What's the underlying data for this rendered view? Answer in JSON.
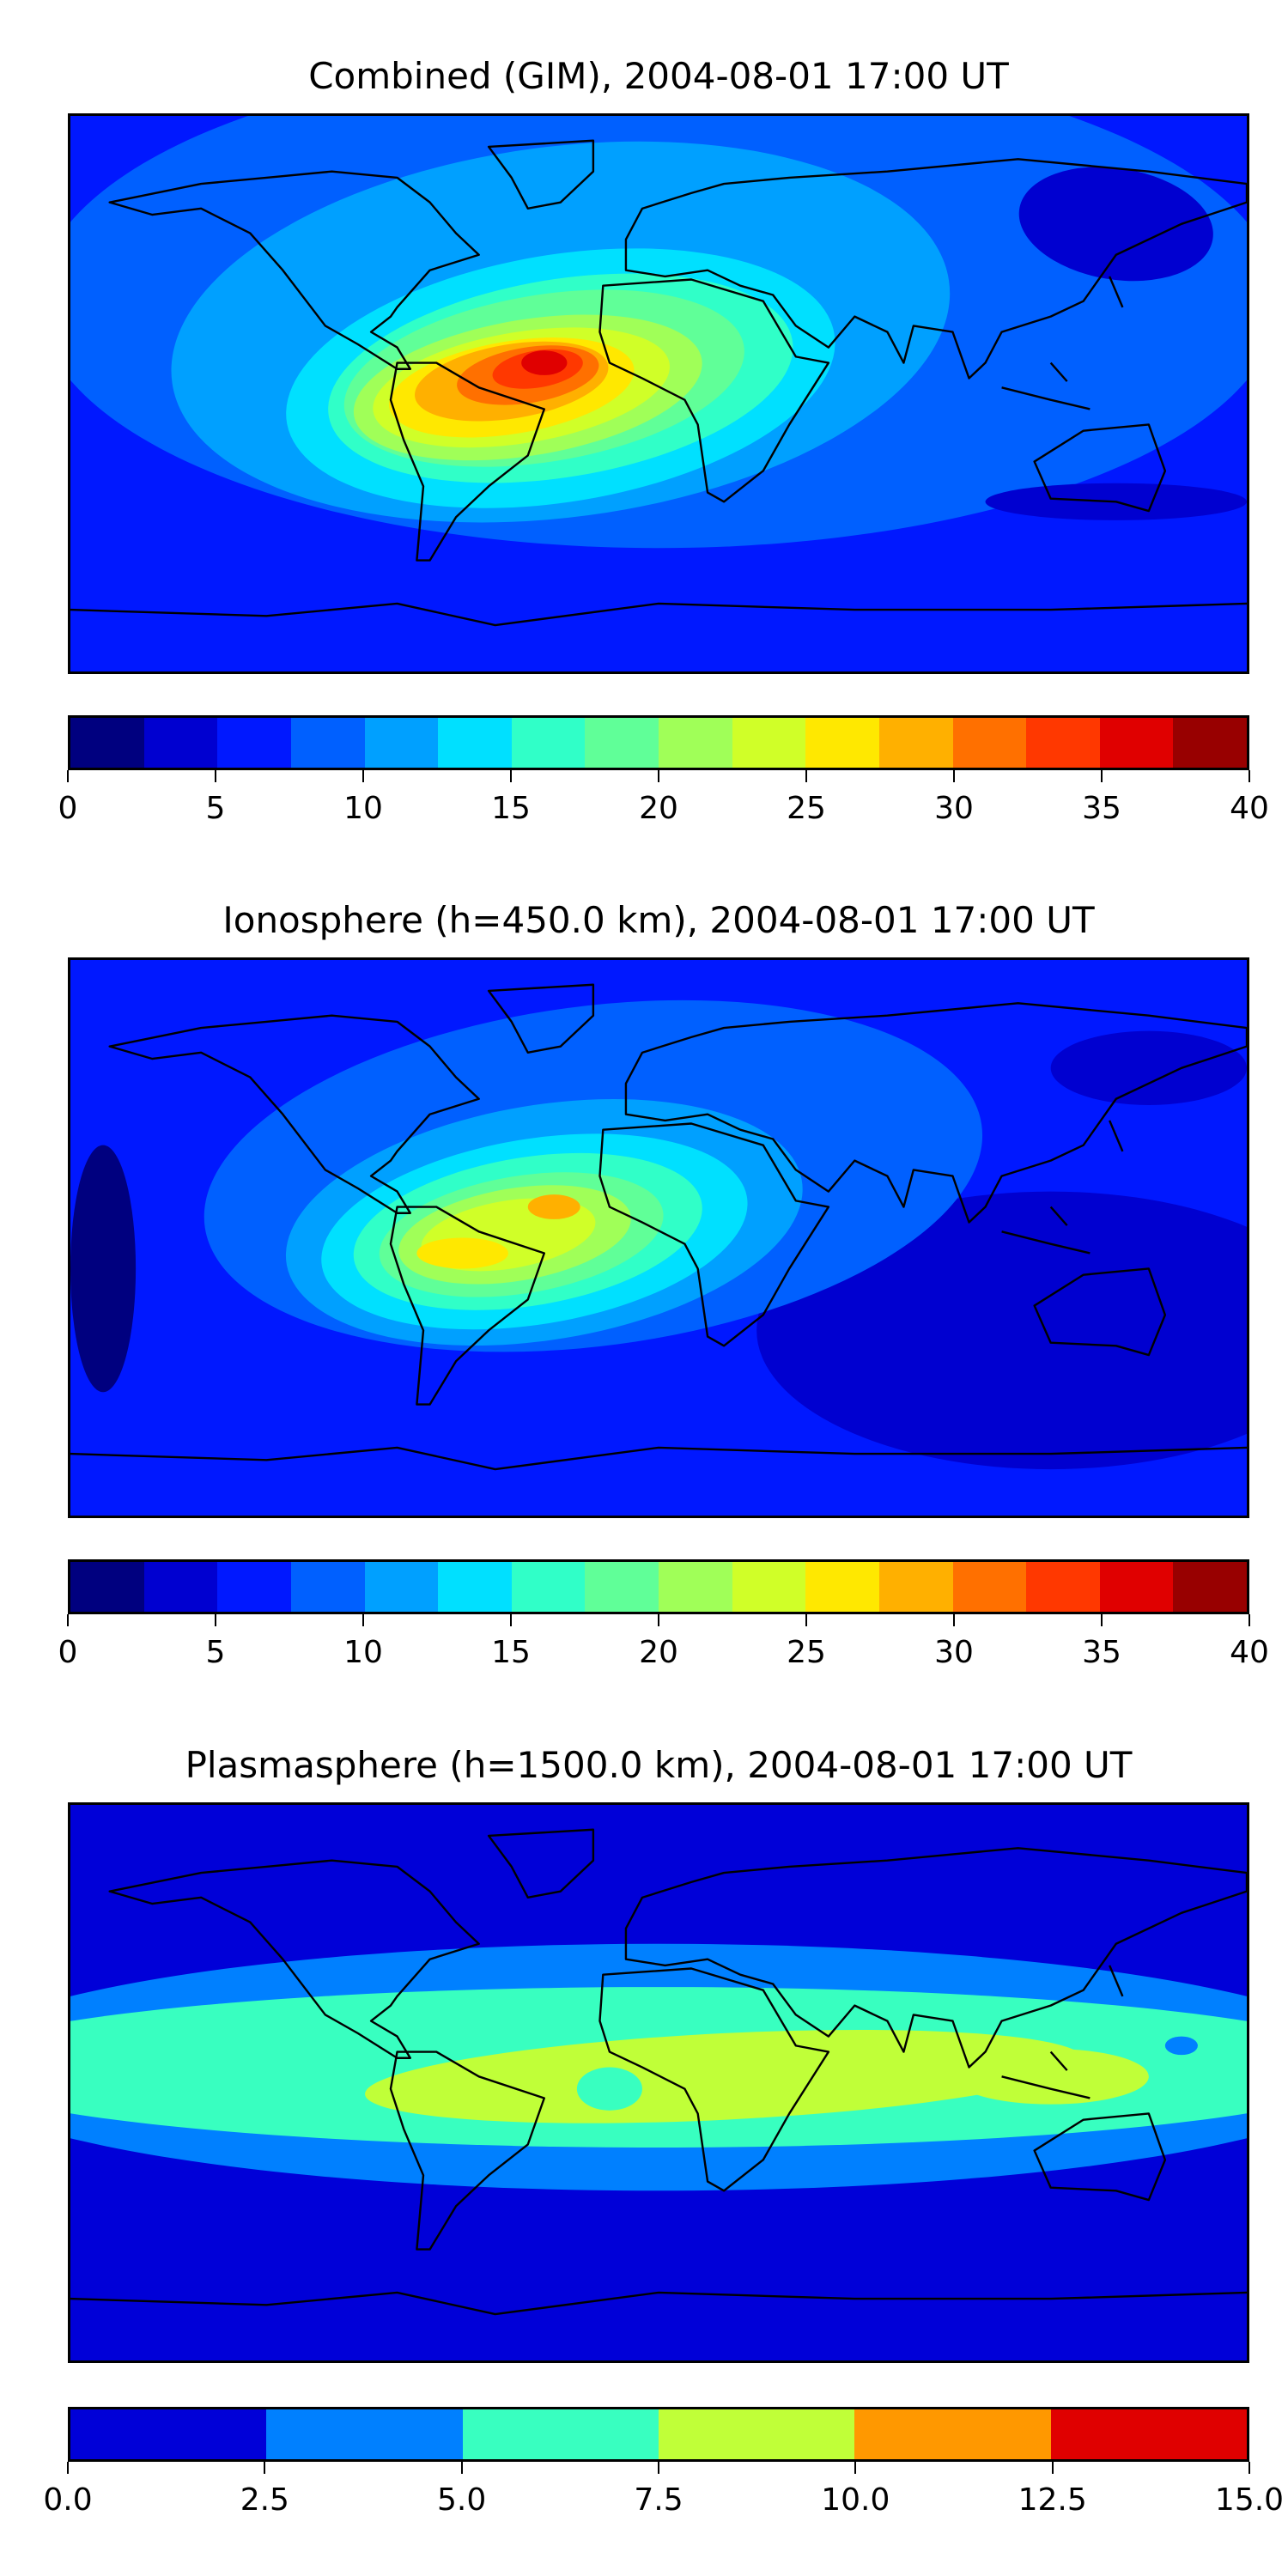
{
  "chart_data": [
    {
      "type": "heatmap",
      "subtype": "filled-contour-map",
      "title": "Combined (GIM), 2004-08-01 17:00 UT",
      "colorbar": {
        "range": [
          0,
          40
        ],
        "levels": [
          0,
          2.5,
          5,
          7.5,
          10,
          12.5,
          15,
          17.5,
          20,
          22.5,
          25,
          27.5,
          30,
          32.5,
          35,
          37.5,
          40
        ],
        "colors": [
          "#00007f",
          "#0000d0",
          "#0018ff",
          "#0060ff",
          "#00a0ff",
          "#00e0ff",
          "#30ffc8",
          "#60ff98",
          "#a0ff58",
          "#d0ff28",
          "#ffe800",
          "#ffb000",
          "#ff7000",
          "#ff3800",
          "#e00000",
          "#980000"
        ],
        "tick_labels": [
          "0",
          "5",
          "10",
          "15",
          "20",
          "25",
          "30",
          "35",
          "40"
        ],
        "tick_values": [
          0,
          5,
          10,
          15,
          20,
          25,
          30,
          35,
          40
        ]
      },
      "features": {
        "peak_value": 37.5,
        "peak_location": "equatorial Atlantic / northern South America",
        "background_level": 5
      }
    },
    {
      "type": "heatmap",
      "subtype": "filled-contour-map",
      "title": "Ionosphere  (h=450.0 km), 2004-08-01 17:00 UT",
      "colorbar": {
        "range": [
          0,
          40
        ],
        "levels": [
          0,
          2.5,
          5,
          7.5,
          10,
          12.5,
          15,
          17.5,
          20,
          22.5,
          25,
          27.5,
          30,
          32.5,
          35,
          37.5,
          40
        ],
        "colors": [
          "#00007f",
          "#0000d0",
          "#0018ff",
          "#0060ff",
          "#00a0ff",
          "#00e0ff",
          "#30ffc8",
          "#60ff98",
          "#a0ff58",
          "#d0ff28",
          "#ffe800",
          "#ffb000",
          "#ff7000",
          "#ff3800",
          "#e00000",
          "#980000"
        ],
        "tick_labels": [
          "0",
          "5",
          "10",
          "15",
          "20",
          "25",
          "30",
          "35",
          "40"
        ],
        "tick_values": [
          0,
          5,
          10,
          15,
          20,
          25,
          30,
          35,
          40
        ]
      },
      "features": {
        "peak_value": 27.5,
        "peak_location": "northern South America / Atlantic",
        "background_level": 5
      }
    },
    {
      "type": "heatmap",
      "subtype": "filled-contour-map",
      "title": "Plasmasphere (h=1500.0 km), 2004-08-01 17:00 UT",
      "colorbar": {
        "range": [
          0,
          15
        ],
        "levels": [
          0,
          2.5,
          5,
          7.5,
          10,
          12.5,
          15
        ],
        "colors": [
          "#0000d8",
          "#0080ff",
          "#38ffc0",
          "#c0ff38",
          "#ff9800",
          "#e00000"
        ],
        "tick_labels": [
          "0.0",
          "2.5",
          "5.0",
          "7.5",
          "10.0",
          "12.5",
          "15.0"
        ],
        "tick_values": [
          0,
          2.5,
          5,
          7.5,
          10,
          12.5,
          15
        ]
      },
      "features": {
        "peak_value": 10,
        "peak_location": "low-latitude band from Atlantic to Indonesia",
        "background_level": 2.5
      }
    }
  ]
}
